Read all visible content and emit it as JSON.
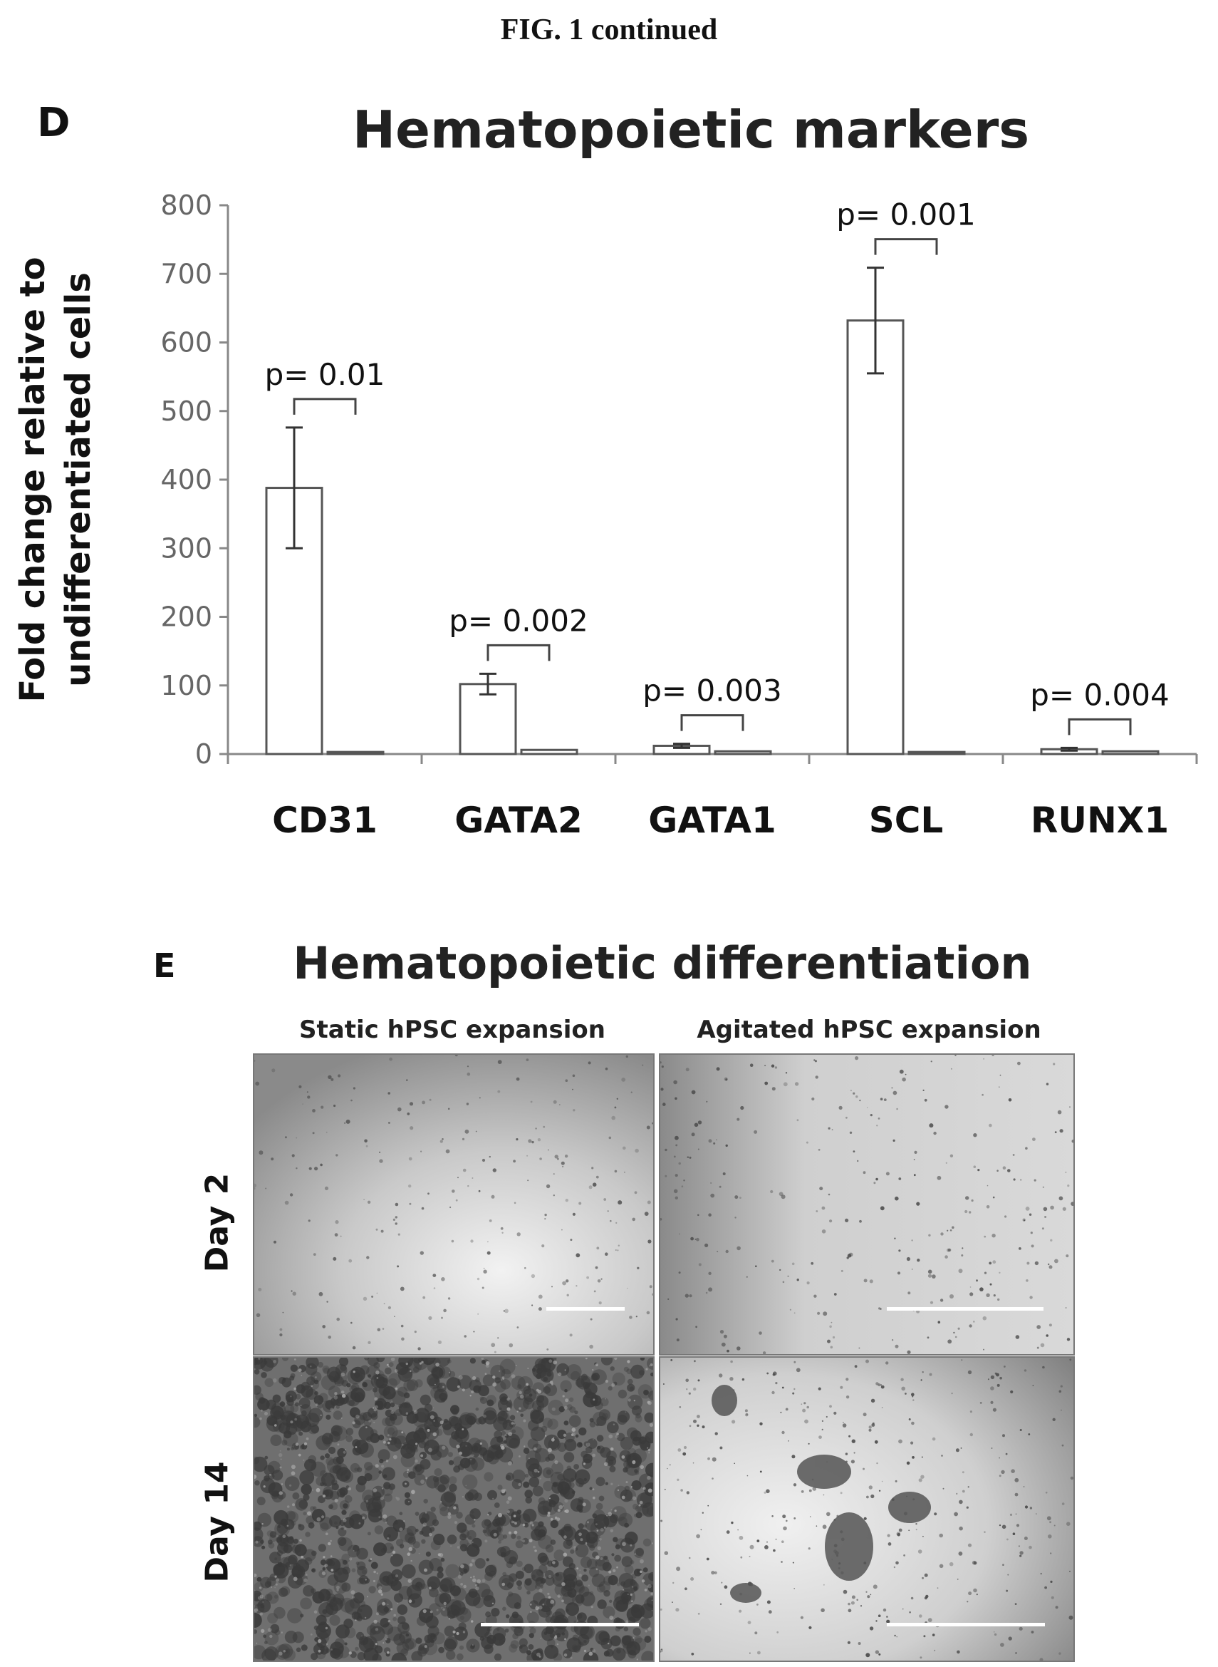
{
  "figure_label": "FIG. 1 continued",
  "panel_d": {
    "letter": "D"
  },
  "chart_data": {
    "type": "bar",
    "title": "Hematopoietic markers",
    "ylabel_line1": "Fold change relative to",
    "ylabel_line2": "undifferentiated cells",
    "categories": [
      "CD31",
      "GATA2",
      "GATA1",
      "SCL",
      "RUNX1"
    ],
    "series": [
      {
        "values": [
          388,
          102,
          12,
          632,
          7
        ],
        "errors": [
          88,
          15,
          3,
          77,
          2
        ],
        "fill": "#ffffff"
      },
      {
        "values": [
          3,
          6,
          4,
          3,
          4
        ],
        "errors": [
          0,
          0,
          0,
          0,
          0
        ],
        "fill": "#ffffff"
      }
    ],
    "p_values": [
      "p= 0.01",
      "p= 0.002",
      "p= 0.003",
      "p= 0.001",
      "p= 0.004"
    ],
    "ylim": [
      0,
      800
    ],
    "yticks": [
      0,
      100,
      200,
      300,
      400,
      500,
      600,
      700,
      800
    ],
    "grid": false,
    "legend": "none"
  },
  "panel_e": {
    "letter": "E",
    "title": "Hematopoietic differentiation",
    "columns": [
      "Static hPSC expansion",
      "Agitated hPSC expansion"
    ],
    "rows": [
      "Day 2",
      "Day 14"
    ]
  },
  "colors": {
    "bar_stroke": "#555555",
    "axis": "#888888",
    "text": "#111111"
  }
}
